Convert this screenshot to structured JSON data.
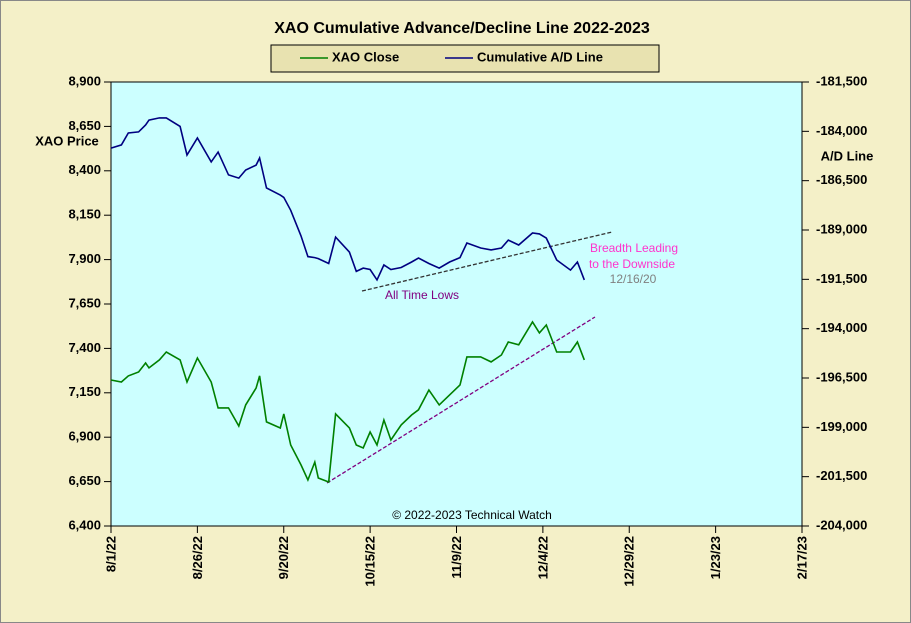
{
  "chart_data": {
    "type": "line",
    "title": "XAO Cumulative Advance/Decline Line 2022-2023",
    "ylabel": "XAO Price",
    "y2label": "A/D Line",
    "legend": "top",
    "annotations": [
      "Breadth Leading",
      "to the Downside",
      "12/16/20",
      "All Time Lows",
      "© 2022-2023  Technical Watch"
    ],
    "x": [
      "2022-08-01",
      "2022-08-04",
      "2022-08-06",
      "2022-08-09",
      "2022-08-11",
      "2022-08-12",
      "2022-08-15",
      "2022-08-17",
      "2022-08-21",
      "2022-08-23",
      "2022-08-26",
      "2022-08-30",
      "2022-09-01",
      "2022-09-04",
      "2022-09-07",
      "2022-09-09",
      "2022-09-12",
      "2022-09-13",
      "2022-09-15",
      "2022-09-19",
      "2022-09-20",
      "2022-09-22",
      "2022-09-25",
      "2022-09-27",
      "2022-09-29",
      "2022-09-30",
      "2022-10-03",
      "2022-10-05",
      "2022-10-09",
      "2022-10-11",
      "2022-10-13",
      "2022-10-15",
      "2022-10-17",
      "2022-10-19",
      "2022-10-21",
      "2022-10-24",
      "2022-10-27",
      "2022-10-29",
      "2022-11-01",
      "2022-11-04",
      "2022-11-07",
      "2022-11-10",
      "2022-11-12",
      "2022-11-16",
      "2022-11-19",
      "2022-11-22",
      "2022-11-24",
      "2022-11-27",
      "2022-12-01",
      "2022-12-03",
      "2022-12-05",
      "2022-12-08",
      "2022-12-12",
      "2022-12-14",
      "2022-12-16"
    ],
    "series": [
      {
        "name": "XAO Close",
        "color": "#008000",
        "values": [
          7222,
          7211,
          7245,
          7267,
          7318,
          7290,
          7335,
          7380,
          7335,
          7211,
          7346,
          7211,
          7065,
          7065,
          6963,
          7082,
          7177,
          7245,
          6986,
          6952,
          7031,
          6856,
          6744,
          6659,
          6760,
          6670,
          6648,
          7031,
          6952,
          6856,
          6839,
          6929,
          6856,
          6997,
          6884,
          6969,
          7025,
          7054,
          7166,
          7082,
          7138,
          7194,
          7352,
          7352,
          7324,
          7363,
          7436,
          7420,
          7549,
          7487,
          7532,
          7380,
          7380,
          7436,
          7335
        ]
      },
      {
        "name": "Cumulative A/D Line",
        "color": "#000080",
        "axis": "y2",
        "values": [
          -184850,
          -184690,
          -184085,
          -184030,
          -183680,
          -183430,
          -183320,
          -183320,
          -183750,
          -185200,
          -184340,
          -185550,
          -185050,
          -186210,
          -186370,
          -185960,
          -185710,
          -185350,
          -186870,
          -187230,
          -187350,
          -188000,
          -189300,
          -190350,
          -190400,
          -190450,
          -190700,
          -189360,
          -190120,
          -191100,
          -190930,
          -191000,
          -191530,
          -190770,
          -191000,
          -190900,
          -190620,
          -190420,
          -190700,
          -190930,
          -190620,
          -190400,
          -189660,
          -189910,
          -190010,
          -189910,
          -189510,
          -189760,
          -189150,
          -189200,
          -189410,
          -190520,
          -191030,
          -190620,
          -191530
        ]
      }
    ],
    "xlim": [
      "2022-08-01",
      "2023-02-17"
    ],
    "xticks": [
      {
        "value": "2022-08-01",
        "label": "8/1/22"
      },
      {
        "value": "2022-08-26",
        "label": "8/26/22"
      },
      {
        "value": "2022-09-20",
        "label": "9/20/22"
      },
      {
        "value": "2022-10-15",
        "label": "10/15/22"
      },
      {
        "value": "2022-11-09",
        "label": "11/9/22"
      },
      {
        "value": "2022-12-04",
        "label": "12/4/22"
      },
      {
        "value": "2022-12-29",
        "label": "12/29/22"
      },
      {
        "value": "2023-01-23",
        "label": "1/23/23"
      },
      {
        "value": "2023-02-17",
        "label": "2/17/23"
      }
    ],
    "ylim": [
      6400,
      8900
    ],
    "yticks": [
      {
        "value": 6400,
        "label": "6,400"
      },
      {
        "value": 6650,
        "label": "6,650"
      },
      {
        "value": 6900,
        "label": "6,900"
      },
      {
        "value": 7150,
        "label": "7,150"
      },
      {
        "value": 7400,
        "label": "7,400"
      },
      {
        "value": 7650,
        "label": "7,650"
      },
      {
        "value": 7900,
        "label": "7,900"
      },
      {
        "value": 8150,
        "label": "8,150"
      },
      {
        "value": 8400,
        "label": "8,400"
      },
      {
        "value": 8650,
        "label": "8,650"
      },
      {
        "value": 8900,
        "label": "8,900"
      }
    ],
    "y2lim": [
      -204000,
      -181500
    ],
    "y2ticks": [
      {
        "value": -204000,
        "label": "-204,000"
      },
      {
        "value": -201500,
        "label": "-201,500"
      },
      {
        "value": -199000,
        "label": "-199,000"
      },
      {
        "value": -196500,
        "label": "-196,500"
      },
      {
        "value": -194000,
        "label": "-194,000"
      },
      {
        "value": -191500,
        "label": "-191,500"
      },
      {
        "value": -189000,
        "label": "-189,000"
      },
      {
        "value": -186500,
        "label": "-186,500"
      },
      {
        "value": -184000,
        "label": "-184,000"
      },
      {
        "value": -181500,
        "label": "-181,500"
      }
    ]
  }
}
